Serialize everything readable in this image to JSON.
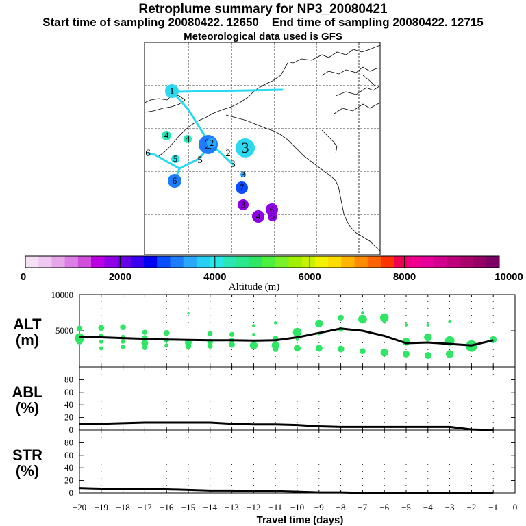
{
  "header": {
    "title": "Retroplume summary for NP3_20080421",
    "start_label": "Start time of sampling 20080422. 12650",
    "end_label": "End time of sampling 20080422. 12715",
    "met_label": "Meteorological data used is GFS"
  },
  "colorbar": {
    "title": "Altitude (m)",
    "tick_labels": [
      "0",
      "2000",
      "4000",
      "6000",
      "8000",
      "10000"
    ],
    "colors": [
      "#f5e1f5",
      "#eec8f0",
      "#e6a6ea",
      "#dc7ee4",
      "#cf4fdc",
      "#b800e0",
      "#9000e6",
      "#6a00e8",
      "#3a00ee",
      "#0000f0",
      "#0a4cff",
      "#1e7cff",
      "#2aa8ff",
      "#27d0f2",
      "#2ae6e6",
      "#2ae6b4",
      "#2ae68c",
      "#2ee664",
      "#4ef040",
      "#78f02a",
      "#a0f000",
      "#c8f000",
      "#f0f000",
      "#ffdc00",
      "#ffb400",
      "#ff8c00",
      "#ff6400",
      "#ff3200",
      "#f00050",
      "#f0008c",
      "#e6009b",
      "#d2008c",
      "#be007d",
      "#aa006e",
      "#960064",
      "#7d0064"
    ]
  },
  "map": {
    "trajectory_labels": [
      "1",
      "1",
      "2",
      "2",
      "3",
      "3",
      "3",
      "4",
      "4",
      "4",
      "5",
      "5",
      "6",
      "6",
      "7"
    ],
    "colors": {
      "line": "#2ad8f0",
      "coast": "#000000",
      "grid": "#000000"
    }
  },
  "chart_data": [
    {
      "type": "scatter",
      "name": "ALT",
      "ylabel": "ALT (m)",
      "ylabel_lines": [
        "ALT",
        "(m)"
      ],
      "ylim": [
        0,
        10000
      ],
      "yticks": [
        "10000",
        "5000"
      ],
      "xlim": [
        -20,
        0
      ],
      "mean_line": {
        "x": [
          -20,
          -19,
          -18,
          -17,
          -16,
          -15,
          -14,
          -13,
          -12,
          -11,
          -10,
          -9,
          -8,
          -7,
          -6,
          -5,
          -4,
          -3,
          -2,
          -1
        ],
        "y": [
          4200,
          4100,
          4000,
          3900,
          3800,
          3750,
          3700,
          3700,
          3650,
          3700,
          4100,
          4700,
          5300,
          5000,
          4300,
          3300,
          3400,
          3200,
          3000,
          3700
        ]
      },
      "points": {
        "x": [
          -20,
          -20,
          -20,
          -19,
          -19,
          -19,
          -19,
          -18,
          -18,
          -18,
          -18,
          -17,
          -17,
          -17,
          -17,
          -16,
          -16,
          -16,
          -15,
          -15,
          -15,
          -14,
          -14,
          -14,
          -13,
          -13,
          -13,
          -12,
          -12,
          -12,
          -11,
          -11,
          -11,
          -11,
          -10,
          -10,
          -10,
          -9,
          -9,
          -9,
          -8,
          -8,
          -8,
          -7,
          -7,
          -7,
          -6,
          -6,
          -6,
          -5,
          -5,
          -5,
          -4,
          -4,
          -4,
          -3,
          -3,
          -3,
          -2,
          -2,
          -1
        ],
        "y": [
          5300,
          4000,
          3600,
          5400,
          4300,
          3500,
          2600,
          5500,
          4100,
          3500,
          2800,
          4800,
          4000,
          3300,
          2700,
          4700,
          3700,
          3000,
          7400,
          3400,
          2900,
          4600,
          3500,
          2900,
          4500,
          3700,
          3100,
          5700,
          4500,
          3000,
          6100,
          3900,
          3000,
          2500,
          4800,
          3800,
          2600,
          6000,
          4600,
          2600,
          6800,
          5200,
          2500,
          7500,
          6600,
          2200,
          6800,
          6200,
          2000,
          5800,
          3500,
          1800,
          5800,
          4100,
          1600,
          6300,
          3600,
          1800,
          3100,
          2900,
          3800
        ],
        "sizes": [
          5,
          9,
          6,
          5,
          4,
          3,
          3,
          5,
          4,
          3,
          3,
          4,
          5,
          6,
          4,
          5,
          4,
          3,
          1,
          6,
          5,
          4,
          5,
          4,
          4,
          4,
          5,
          2,
          2,
          7,
          2,
          5,
          7,
          5,
          8,
          2,
          6,
          7,
          2,
          6,
          5,
          4,
          6,
          2,
          8,
          5,
          8,
          2,
          7,
          2,
          7,
          6,
          2,
          7,
          6,
          2,
          9,
          7,
          2,
          11,
          6
        ]
      }
    },
    {
      "type": "line",
      "name": "ABL",
      "ylabel": "ABL (%)",
      "ylabel_lines": [
        "ABL",
        "(%)"
      ],
      "ylim": [
        0,
        100
      ],
      "yticks": [
        "0",
        "20",
        "40",
        "60",
        "80"
      ],
      "xlim": [
        -20,
        0
      ],
      "x": [
        -20,
        -19,
        -18,
        -17,
        -16,
        -15,
        -14,
        -13,
        -12,
        -11,
        -10,
        -9,
        -8,
        -7,
        -6,
        -5,
        -4,
        -3,
        -2,
        -1
      ],
      "y": [
        10,
        10,
        11,
        12,
        12,
        12,
        12,
        10,
        9,
        9,
        8,
        6,
        5,
        5,
        5,
        5,
        5,
        5,
        1,
        0
      ]
    },
    {
      "type": "line",
      "name": "STR",
      "ylabel": "STR (%)",
      "ylabel_lines": [
        "STR",
        "(%)"
      ],
      "ylim": [
        0,
        100
      ],
      "yticks": [
        "0",
        "20",
        "40",
        "60",
        "80"
      ],
      "xlim": [
        -20,
        0
      ],
      "x": [
        -20,
        -19,
        -18,
        -17,
        -16,
        -15,
        -14,
        -13,
        -12,
        -11,
        -10,
        -9,
        -8,
        -7,
        -6,
        -5,
        -4,
        -3,
        -2,
        -1
      ],
      "y": [
        8,
        7,
        7,
        6,
        6,
        5,
        4,
        4,
        3,
        3,
        2,
        1,
        1,
        0,
        0,
        0,
        0,
        0,
        0,
        0
      ]
    }
  ],
  "x_axis": {
    "label": "Travel time (days)",
    "tick_labels": [
      "−20",
      "−19",
      "−18",
      "−17",
      "−16",
      "−15",
      "−14",
      "−13",
      "−12",
      "−11",
      "−10",
      "−9",
      "−8",
      "−7",
      "−6",
      "−5",
      "−4",
      "−3",
      "−2",
      "−1",
      "0"
    ]
  }
}
